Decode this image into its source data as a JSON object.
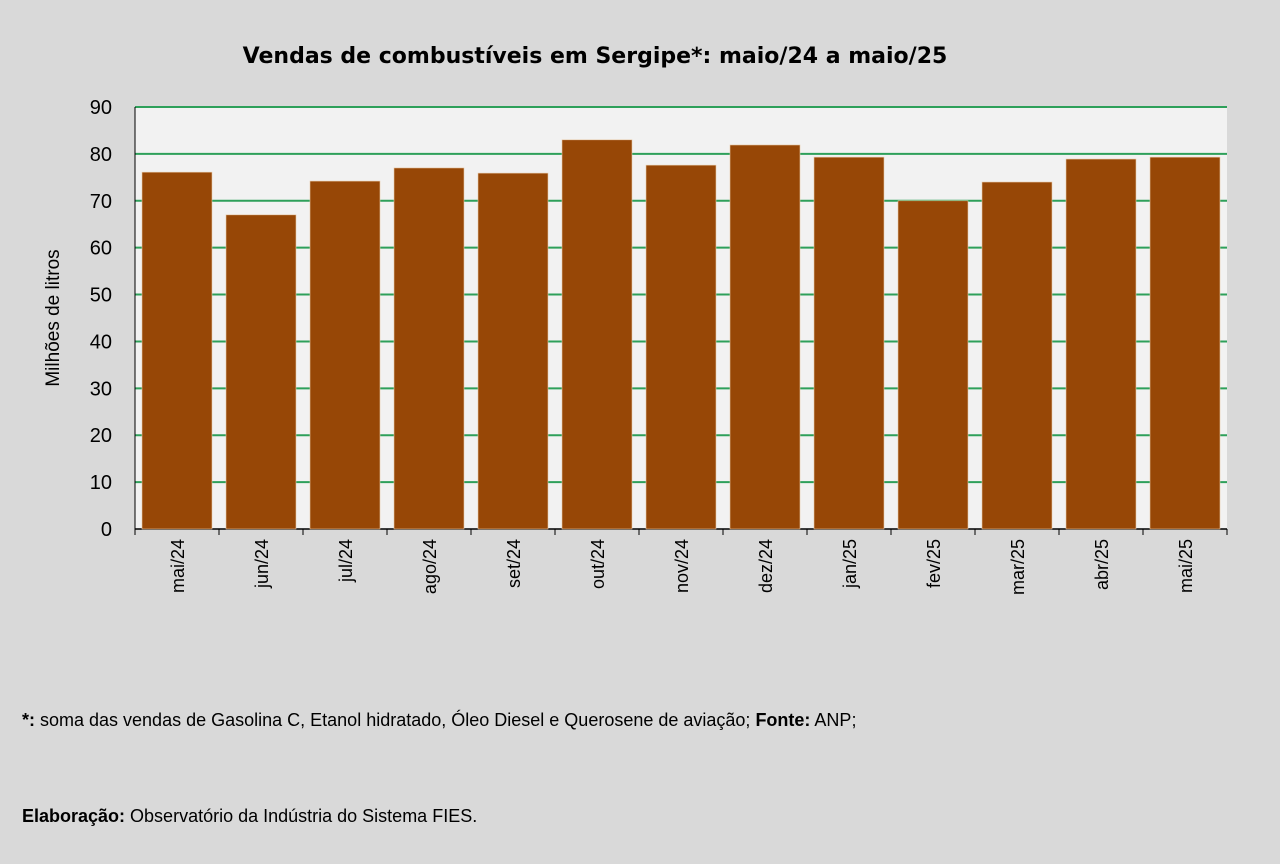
{
  "chart_data": {
    "type": "bar",
    "title": "Vendas de combustíveis em Sergipe*: maio/24 a maio/25",
    "xlabel": "",
    "ylabel": "Milhões de litros",
    "ylim": [
      0,
      90
    ],
    "yticks": [
      0,
      10,
      20,
      30,
      40,
      50,
      60,
      70,
      80,
      90
    ],
    "grid": true,
    "categories": [
      "mai/24",
      "jun/24",
      "jul/24",
      "ago/24",
      "set/24",
      "out/24",
      "nov/24",
      "dez/24",
      "jan/25",
      "fev/25",
      "mar/25",
      "abr/25",
      "mai/25"
    ],
    "values": [
      76.1,
      67.0,
      74.2,
      77.0,
      75.9,
      83.0,
      77.6,
      81.9,
      79.3,
      70.0,
      74.0,
      78.9,
      79.3
    ],
    "bar_color": "#974706",
    "grid_color": "#2ea05a"
  },
  "footer": {
    "line1_bold": "*:",
    "line1_text": " soma das vendas de Gasolina C, Etanol hidratado, Óleo Diesel e Querosene de aviação; ",
    "line1_bold2": "Fonte:",
    "line1_text2": " ANP;",
    "line2_bold": "Elaboração:",
    "line2_text": " Observatório da Indústria do Sistema FIES."
  }
}
